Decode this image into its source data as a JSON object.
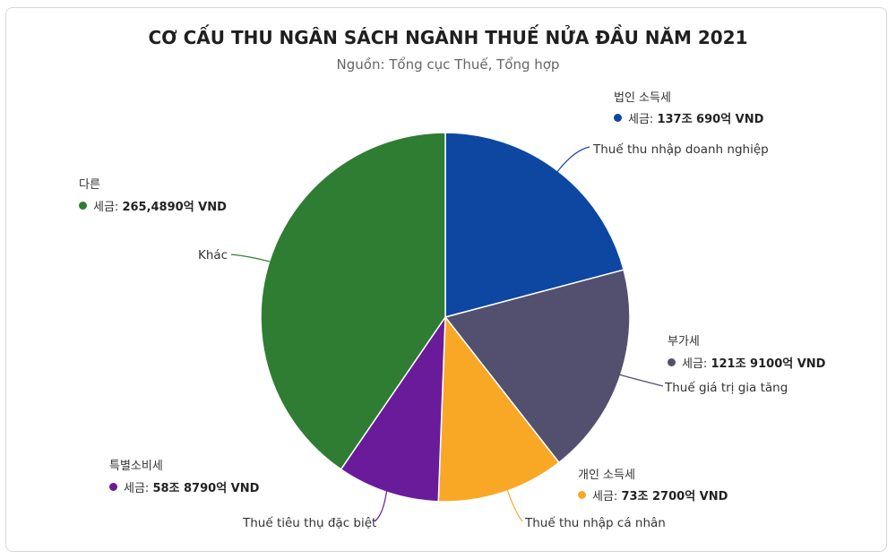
{
  "chart_data": {
    "type": "pie",
    "title": "CƠ CẤU THU NGÂN SÁCH NGÀNH THUẾ NỬA ĐẦU NĂM 2021",
    "subtitle": "Nguồn: Tổng cục Thuế, Tổng hợp",
    "value_prefix": "세금: ",
    "slices": [
      {
        "name": "Thuế thu nhập doanh nghiệp",
        "label": "법인 소득세",
        "value_text": "137조 690억 VND",
        "value": 137.069,
        "color": "#0d47a1"
      },
      {
        "name": "Thuế giá trị gia tăng",
        "label": "부가세",
        "value_text": "121조 9100억 VND",
        "value": 121.91,
        "color": "#53506f"
      },
      {
        "name": "Thuế thu nhập cá nhân",
        "label": "개인 소득세",
        "value_text": "73조 2700억 VND",
        "value": 73.27,
        "color": "#f9a825"
      },
      {
        "name": "Thuế tiêu thụ đặc biệt",
        "label": "특별소비세",
        "value_text": "58조 8790억 VND",
        "value": 58.879,
        "color": "#6a1b9a"
      },
      {
        "name": "Khác",
        "label": "다른",
        "value_text": "265,4890억 VND",
        "value": 265.489,
        "color": "#2e7d32"
      }
    ]
  }
}
